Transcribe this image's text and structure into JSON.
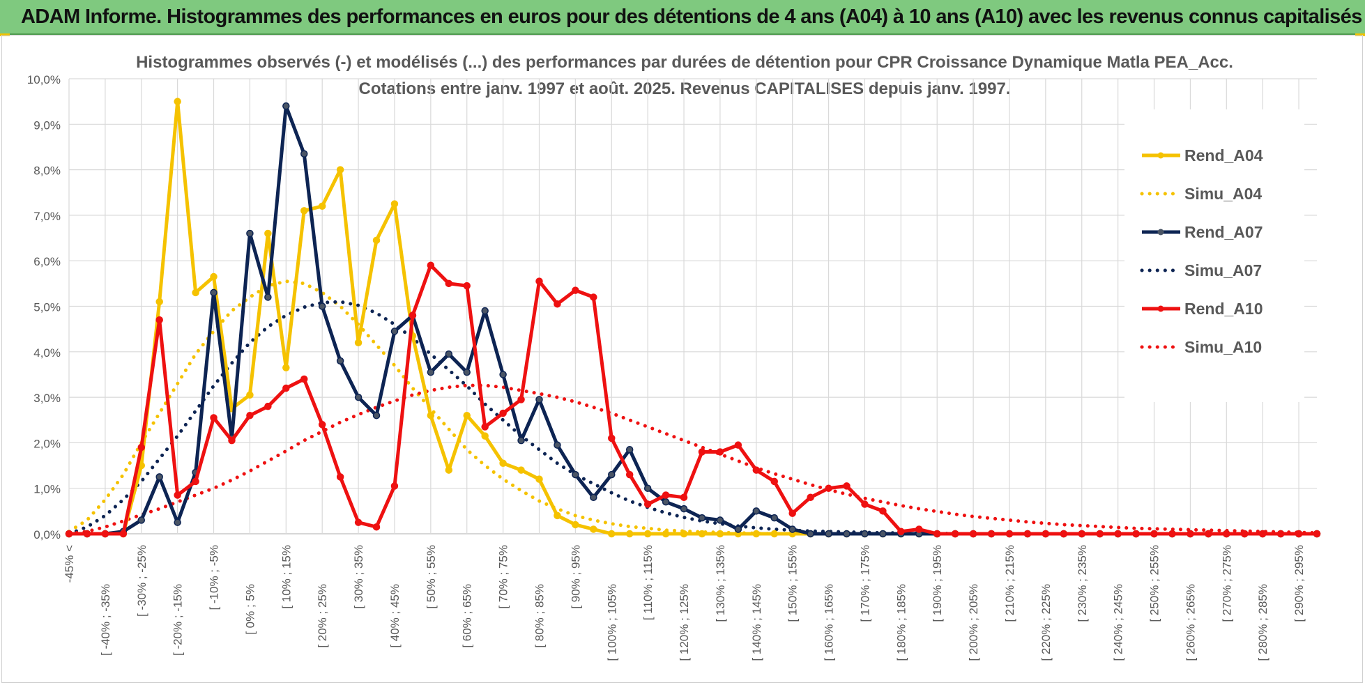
{
  "banner": {
    "title": "ADAM Informe. Histogrammes des performances en euros pour des détentions de 4 ans (A04) à 10 ans (A10) avec les revenus connus capitalisés"
  },
  "colors": {
    "banner_bg": "#7fc97f",
    "A04": "#f5c200",
    "A07": "#0d2453",
    "A10": "#ee1111",
    "grid": "#d9d9d9"
  },
  "chart_data": {
    "type": "line",
    "title": "Histogrammes observés (-) et modélisés (...) des performances par durées de détention pour CPR Croissance Dynamique Matla PEA_Acc.",
    "subtitle": "Cotations entre janv. 1997 et août. 2025. Revenus CAPITALISES depuis janv. 1997.",
    "xlabel": "",
    "ylabel": "",
    "ylim": [
      0,
      10
    ],
    "y_ticks": [
      "0,0%",
      "1,0%",
      "2,0%",
      "3,0%",
      "4,0%",
      "5,0%",
      "6,0%",
      "7,0%",
      "8,0%",
      "9,0%",
      "10,0%"
    ],
    "grid": true,
    "legend_position": "right",
    "x_tick_labels": [
      "-45% <",
      "[ -40% ; -35%",
      "[ -30% ; -25%",
      "[ -20% ; -15%",
      "[ -10% ; -5%",
      "[ 0% ; 5%",
      "[ 10% ; 15%",
      "[ 20% ; 25%",
      "[ 30% ; 35%",
      "[ 40% ; 45%",
      "[ 50% ; 55%",
      "[ 60% ; 65%",
      "[ 70% ; 75%",
      "[ 80% ; 85%",
      "[ 90% ; 95%",
      "[ 100% ; 105%",
      "[ 110% ; 115%",
      "[ 120% ; 125%",
      "[ 130% ; 135%",
      "[ 140% ; 145%",
      "[ 150% ; 155%",
      "[ 160% ; 165%",
      "[ 170% ; 175%",
      "[ 180% ; 185%",
      "[ 190% ; 195%",
      "[ 200% ; 205%",
      "[ 210% ; 215%",
      "[ 220% ; 225%",
      "[ 230% ; 235%",
      "[ 240% ; 245%",
      "[ 250% ; 255%",
      "[ 260% ; 265%",
      "[ 270% ; 275%",
      "[ 280% ; 285%",
      "[ 290% ; 295%"
    ],
    "series": [
      {
        "name": "Rend_A04",
        "style": "solid",
        "color": "#f5c200",
        "values": [
          0,
          0,
          0,
          0,
          1.5,
          5.1,
          9.5,
          5.3,
          5.65,
          2.75,
          3.05,
          6.6,
          3.65,
          7.1,
          7.2,
          8.0,
          4.2,
          6.45,
          7.25,
          4.35,
          2.6,
          1.4,
          2.6,
          2.15,
          1.55,
          1.4,
          1.2,
          0.4,
          0.2,
          0.1,
          0,
          0,
          0,
          0,
          0,
          0,
          0,
          0,
          0,
          0,
          0,
          0,
          0,
          0,
          0,
          0,
          0,
          0,
          0,
          0,
          0,
          0,
          0,
          0,
          0,
          0,
          0,
          0,
          0,
          0,
          0,
          0,
          0,
          0,
          0,
          0,
          0,
          0,
          0,
          0
        ]
      },
      {
        "name": "Simu_A04",
        "style": "dotted",
        "color": "#f5c200",
        "values": [
          0.05,
          0.3,
          0.75,
          1.3,
          2.0,
          2.65,
          3.3,
          3.95,
          4.45,
          4.9,
          5.2,
          5.45,
          5.55,
          5.5,
          5.3,
          5.0,
          4.6,
          4.15,
          3.7,
          3.2,
          2.75,
          2.3,
          1.85,
          1.5,
          1.2,
          0.95,
          0.72,
          0.55,
          0.4,
          0.3,
          0.22,
          0.16,
          0.12,
          0.08,
          0.06,
          0.04,
          0.03,
          0.02,
          0.01,
          0,
          0,
          0,
          0,
          0,
          0,
          0,
          0,
          0,
          0,
          0,
          0,
          0,
          0,
          0,
          0,
          0,
          0,
          0,
          0,
          0,
          0,
          0,
          0,
          0,
          0,
          0,
          0,
          0,
          0,
          0
        ]
      },
      {
        "name": "Rend_A07",
        "style": "solid",
        "color": "#0d2453",
        "values": [
          0,
          0,
          0,
          0.05,
          0.3,
          1.25,
          0.25,
          1.35,
          5.3,
          2.1,
          6.6,
          5.2,
          9.4,
          8.35,
          5.0,
          3.8,
          3.0,
          2.6,
          4.45,
          4.8,
          3.55,
          3.95,
          3.55,
          4.9,
          3.5,
          2.05,
          2.95,
          1.95,
          1.3,
          0.8,
          1.3,
          1.85,
          1.0,
          0.7,
          0.55,
          0.35,
          0.3,
          0.1,
          0.5,
          0.35,
          0.1,
          0,
          0,
          0,
          0,
          0,
          0,
          0,
          0,
          0,
          0,
          0,
          0,
          0,
          0,
          0,
          0,
          0,
          0,
          0,
          0,
          0,
          0,
          0,
          0,
          0,
          0,
          0,
          0,
          0
        ]
      },
      {
        "name": "Simu_A07",
        "style": "dotted",
        "color": "#0d2453",
        "values": [
          0,
          0.15,
          0.4,
          0.75,
          1.15,
          1.65,
          2.15,
          2.7,
          3.25,
          3.75,
          4.2,
          4.55,
          4.8,
          4.98,
          5.08,
          5.1,
          5.02,
          4.85,
          4.6,
          4.3,
          3.95,
          3.6,
          3.25,
          2.85,
          2.5,
          2.15,
          1.85,
          1.55,
          1.3,
          1.1,
          0.9,
          0.72,
          0.58,
          0.46,
          0.36,
          0.28,
          0.22,
          0.17,
          0.13,
          0.1,
          0.08,
          0.06,
          0.05,
          0.04,
          0.03,
          0.02,
          0.02,
          0.01,
          0.01,
          0,
          0,
          0,
          0,
          0,
          0,
          0,
          0,
          0,
          0,
          0,
          0,
          0,
          0,
          0,
          0,
          0,
          0,
          0,
          0,
          0
        ]
      },
      {
        "name": "Rend_A10",
        "style": "solid",
        "color": "#ee1111",
        "values": [
          0,
          0,
          0,
          0,
          1.9,
          4.7,
          0.85,
          1.15,
          2.55,
          2.05,
          2.6,
          2.8,
          3.2,
          3.4,
          2.4,
          1.25,
          0.25,
          0.15,
          1.05,
          4.8,
          5.9,
          5.5,
          5.45,
          2.35,
          2.65,
          2.95,
          5.55,
          5.05,
          5.35,
          5.2,
          2.1,
          1.3,
          0.65,
          0.85,
          0.8,
          1.8,
          1.8,
          1.95,
          1.4,
          1.15,
          0.45,
          0.8,
          1.0,
          1.05,
          0.65,
          0.5,
          0.05,
          0.1,
          0,
          0,
          0,
          0,
          0,
          0,
          0,
          0,
          0,
          0,
          0,
          0,
          0,
          0,
          0,
          0,
          0,
          0,
          0,
          0,
          0,
          0
        ]
      },
      {
        "name": "Simu_A10",
        "style": "dotted",
        "color": "#ee1111",
        "values": [
          0,
          0.05,
          0.15,
          0.28,
          0.42,
          0.55,
          0.7,
          0.85,
          1.0,
          1.18,
          1.38,
          1.6,
          1.82,
          2.05,
          2.25,
          2.45,
          2.62,
          2.78,
          2.92,
          3.05,
          3.15,
          3.22,
          3.26,
          3.26,
          3.22,
          3.15,
          3.08,
          3.0,
          2.9,
          2.78,
          2.65,
          2.5,
          2.35,
          2.2,
          2.05,
          1.9,
          1.75,
          1.6,
          1.45,
          1.32,
          1.2,
          1.08,
          0.97,
          0.87,
          0.78,
          0.7,
          0.62,
          0.55,
          0.49,
          0.43,
          0.38,
          0.34,
          0.3,
          0.26,
          0.23,
          0.2,
          0.18,
          0.16,
          0.14,
          0.12,
          0.11,
          0.1,
          0.09,
          0.08,
          0.07,
          0.06,
          0.05,
          0.04,
          0.03,
          0.02
        ]
      }
    ]
  }
}
